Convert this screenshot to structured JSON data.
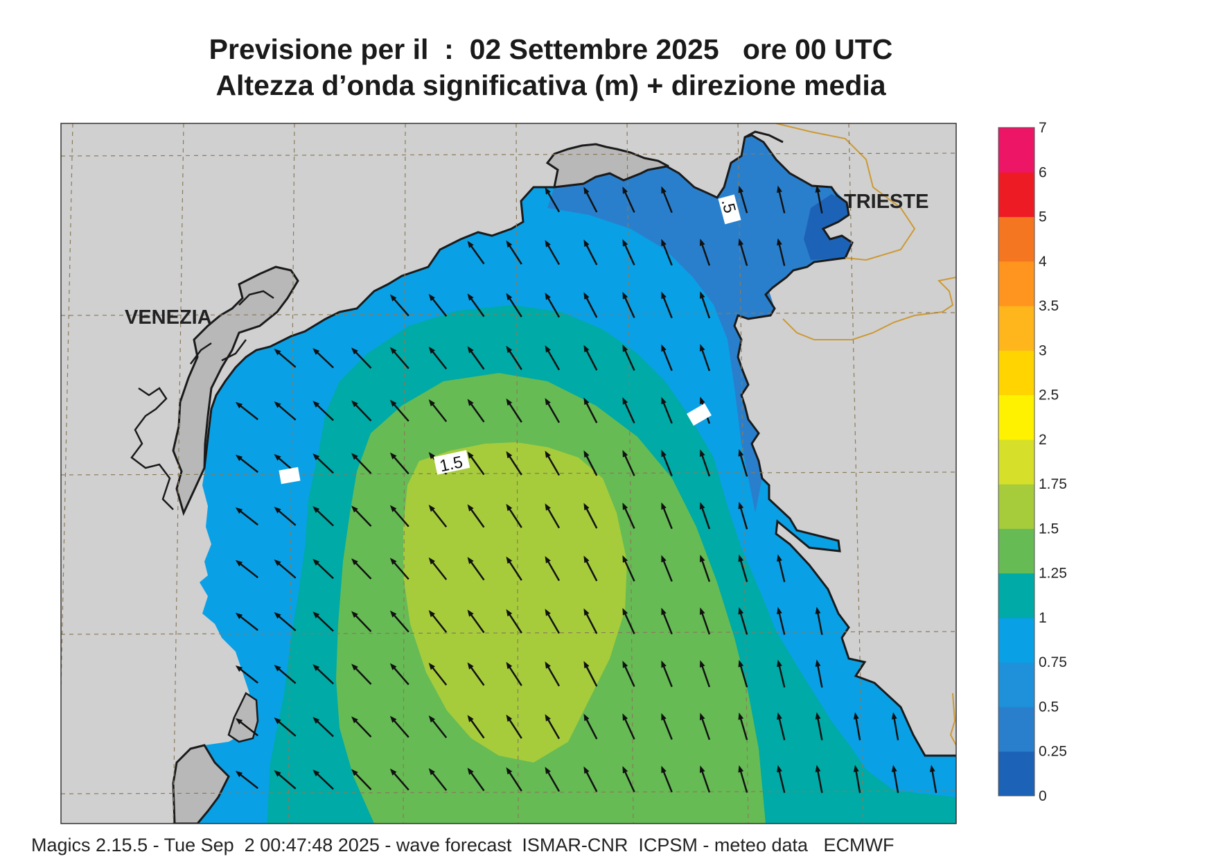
{
  "title": {
    "line1": "Previsione per il  :  02 Settembre 2025   ore 00 UTC",
    "line2": "Altezza d’onda significativa (m) + direzione media"
  },
  "map": {
    "cities": [
      "VENEZIA",
      "TRIESTE"
    ],
    "contour_labels": [
      "1.5",
      ".5"
    ]
  },
  "legend": {
    "ticks": [
      "0",
      "0.25",
      "0.5",
      "0.75",
      "1",
      "1.25",
      "1.5",
      "1.75",
      "2",
      "2.5",
      "3",
      "3.5",
      "4",
      "5",
      "6",
      "7"
    ],
    "colors": [
      "#1c62b6",
      "#2a7fcc",
      "#1f90da",
      "#0aa0e6",
      "#00aaa6",
      "#66bb55",
      "#a6cc3c",
      "#d6e02a",
      "#fff200",
      "#ffd400",
      "#ffb51c",
      "#ff941e",
      "#f57621",
      "#ed1c24",
      "#ed1566"
    ]
  },
  "sea_colors": {
    "band_0_25": "#1c62b6",
    "band_0_5": "#2a7fcc",
    "band_0_75": "#0aa0e6",
    "band_1": "#00aaa6",
    "band_1_25": "#66bb55",
    "band_1_5": "#a6cc3c",
    "land": "#d0d0d0",
    "border": "#cc9933"
  },
  "arrow_icon": "wave-direction-arrow-icon",
  "footer": "Magics 2.15.5 - Tue Sep  2 00:47:48 2025 - wave forecast  ISMAR-CNR  ICPSM - meteo data   ECMWF"
}
